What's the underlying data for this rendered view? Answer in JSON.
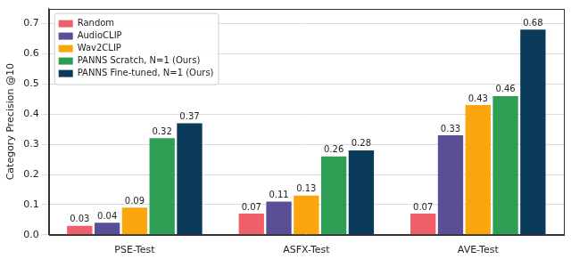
{
  "chart_data": {
    "type": "bar",
    "y_label": "Category Precision @10",
    "categories": [
      "PSE-Test",
      "ASFX-Test",
      "AVE-Test"
    ],
    "series": [
      {
        "name": "Random",
        "color": "#f0606b",
        "values": [
          0.03,
          0.07,
          0.07
        ]
      },
      {
        "name": "AudioCLIP",
        "color": "#5a4e96",
        "values": [
          0.04,
          0.11,
          0.33
        ]
      },
      {
        "name": "Wav2CLIP",
        "color": "#fca60f",
        "values": [
          0.09,
          0.13,
          0.43
        ]
      },
      {
        "name": "PANNS Scratch, N=1 (Ours)",
        "color": "#2f9e55",
        "values": [
          0.32,
          0.26,
          0.46
        ]
      },
      {
        "name": "PANNS Fine-tuned, N=1 (Ours)",
        "color": "#0b3b5a",
        "values": [
          0.37,
          0.28,
          0.68
        ]
      }
    ],
    "ylim": [
      0,
      0.75
    ],
    "yticks": [
      {
        "value": 0,
        "label": "0.0"
      },
      0.1,
      0.2,
      0.3,
      0.4,
      0.5,
      0.6,
      0.7
    ],
    "grid": true,
    "legend": "upper left",
    "data_labels": true
  }
}
